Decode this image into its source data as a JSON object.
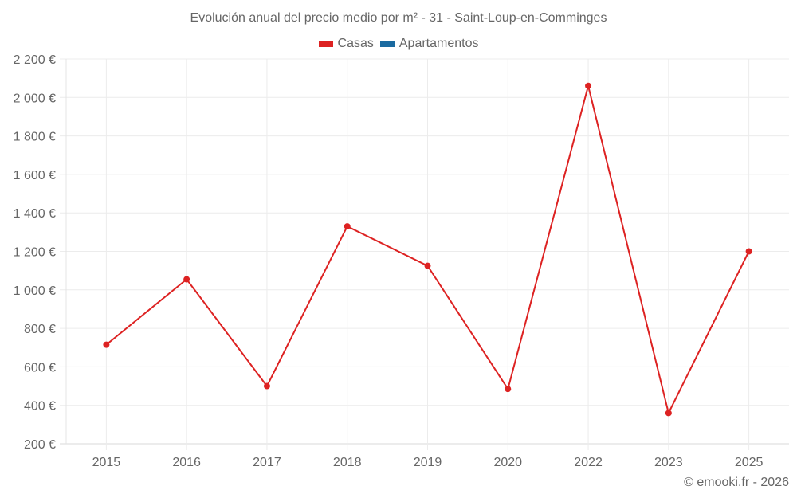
{
  "title": "Evolución anual del precio medio por m² - 31 - Saint-Loup-en-Comminges",
  "legend": [
    {
      "label": "Casas",
      "color": "#dd2222"
    },
    {
      "label": "Apartamentos",
      "color": "#1a6aa0"
    }
  ],
  "footer": "© emooki.fr - 2026",
  "chart_data": {
    "type": "line",
    "title": "Evolución anual del precio medio por m² - 31 - Saint-Loup-en-Comminges",
    "xlabel": "",
    "ylabel": "",
    "categories": [
      "2015",
      "2016",
      "2017",
      "2018",
      "2019",
      "2020",
      "2022",
      "2023",
      "2025"
    ],
    "series": [
      {
        "name": "Casas",
        "color": "#dd2222",
        "values": [
          715,
          1055,
          500,
          1330,
          1125,
          485,
          2060,
          360,
          1200
        ]
      },
      {
        "name": "Apartamentos",
        "color": "#1a6aa0",
        "values": []
      }
    ],
    "ylim": [
      200,
      2200
    ],
    "yticks": [
      200,
      400,
      600,
      800,
      1000,
      1200,
      1400,
      1600,
      1800,
      2000,
      2200
    ],
    "ytick_labels": [
      "200 €",
      "400 €",
      "600 €",
      "800 €",
      "1 000 €",
      "1 200 €",
      "1 400 €",
      "1 600 €",
      "1 800 €",
      "2 000 €",
      "2 200 €"
    ],
    "grid": true,
    "legend_position": "top"
  }
}
